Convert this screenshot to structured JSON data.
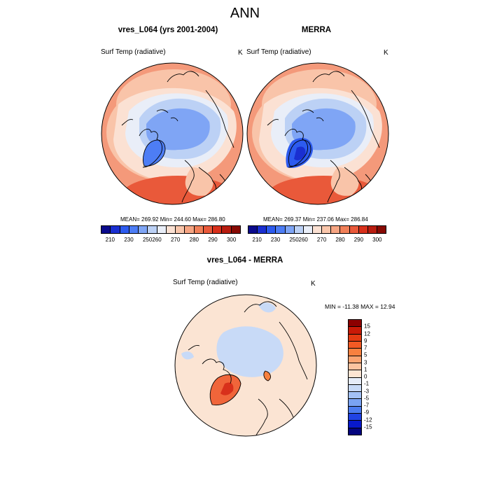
{
  "page_title": "ANN",
  "panels": [
    {
      "title": "vres_L064 (yrs 2001-2004)",
      "variable": "Surf Temp (radiative)",
      "units": "K",
      "stats": "MEAN= 269.92  Min= 244.60  Max= 286.80"
    },
    {
      "title": "MERRA",
      "variable": "Surf Temp (radiative)",
      "units": "K",
      "stats": "MEAN= 269.37  Min= 237.06  Max= 286.84"
    }
  ],
  "colorbar_top": {
    "colors": [
      "#0a0a8c",
      "#1a2fd1",
      "#2d5bef",
      "#4d7df5",
      "#7fa5f5",
      "#bcd1f5",
      "#e9eef8",
      "#fbe1d3",
      "#f9c6ab",
      "#f6a583",
      "#f18059",
      "#e9593a",
      "#d8301b",
      "#b81d10",
      "#870a03"
    ],
    "labels": [
      "210",
      "230",
      "250",
      "260",
      "270",
      "280",
      "290",
      "300"
    ]
  },
  "diff_panel": {
    "title": "vres_L064 - MERRA",
    "variable": "Surf Temp (radiative)",
    "units": "K",
    "stats": "MIN = -11.38 MAX =  12.94"
  },
  "colorbar_diff": {
    "colors": [
      "#8c0000",
      "#c91a07",
      "#e43b12",
      "#f35a24",
      "#f7803f",
      "#f9a371",
      "#fbc3a0",
      "#fde4d2",
      "#e6ecf8",
      "#c8daf7",
      "#a3c1f5",
      "#7aa3f3",
      "#4c7cf0",
      "#2143e4",
      "#0819cc",
      "#04057e"
    ],
    "labels": [
      "15",
      "12",
      "9",
      "7",
      "5",
      "3",
      "1",
      "0",
      "-1",
      "-3",
      "-5",
      "-7",
      "-9",
      "-12",
      "-15"
    ]
  },
  "map_colors": {
    "outer_warm": "#f4997a",
    "warm_mid": "#f9c4a9",
    "warm_light": "#fbe1d3",
    "neutral": "#e9eef8",
    "cold_light": "#bcd1f5",
    "cold_mid": "#7fa5f5",
    "cold_deep": "#4d7df5",
    "hot": "#e9593a",
    "diff_bg": "#fbe4d3",
    "diff_cold": "#c8daf7",
    "diff_hot": "#f0653a"
  }
}
